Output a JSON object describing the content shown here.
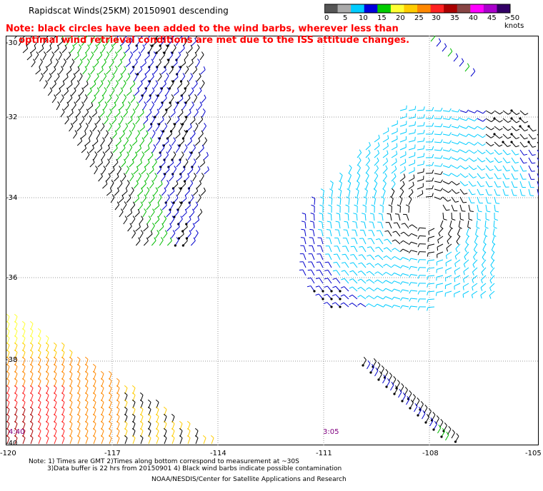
{
  "header": {
    "title": "Rapidscat Winds(25KM) 20150901 descending",
    "note_line1": "Note: black circles have been added to the wind barbs, wherever less than",
    "note_line2": "optimal wind retrieval conditions are met due to the ISS attitude changes."
  },
  "colorbar": {
    "labels": [
      "0",
      "5",
      "10",
      "15",
      "20",
      "25",
      "30",
      "35",
      "40",
      "45",
      ">50 knots"
    ],
    "colors": [
      "#555555",
      "#aaaaaa",
      "#00ccff",
      "#0000dd",
      "#00cc00",
      "#ffff33",
      "#ffcc00",
      "#ff8800",
      "#ff2222",
      "#aa0000",
      "#884444",
      "#ff00ff",
      "#aa00cc",
      "#330066"
    ]
  },
  "axes": {
    "lat_labels": [
      "-30",
      "-32",
      "-34",
      "-36",
      "-38",
      "-40"
    ],
    "lon_labels": [
      "-120",
      "-117",
      "-114",
      "-111",
      "-108",
      "-105"
    ]
  },
  "times": [
    "4:40",
    "3:05"
  ],
  "footer": {
    "line1": "Note: 1) Times are GMT 2)Times along bottom correspond to measurement at ~30S",
    "line2": "3)Data buffer is 22 hrs from 20150901 4) Black wind barbs indicate possible contamination",
    "credit": "NOAA/NESDIS/Center for Satellite Applications and Research"
  }
}
